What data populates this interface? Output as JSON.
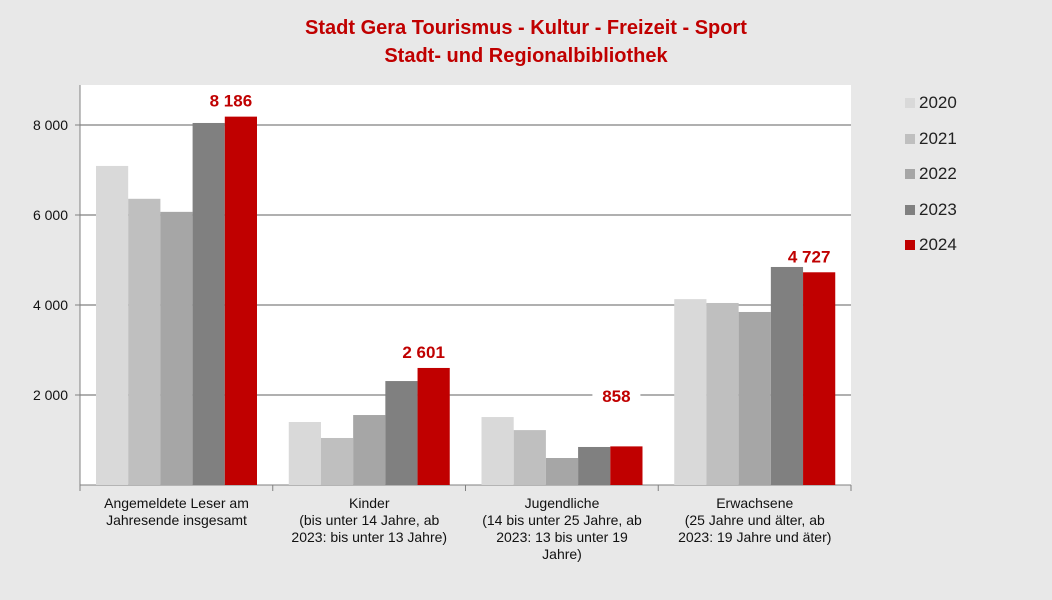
{
  "chart_data": {
    "type": "bar",
    "title": [
      "Stadt Gera Tourismus - Kultur - Freizeit - Sport",
      "Stadt- und Regionalbibliothek"
    ],
    "categories": [
      [
        "Angemeldete Leser am",
        "Jahresende insgesamt"
      ],
      [
        "Kinder",
        "(bis unter 14 Jahre, ab",
        "2023: bis unter 13 Jahre)"
      ],
      [
        "Jugendliche",
        "(14 bis unter 25 Jahre, ab",
        "2023: 13 bis unter 19",
        "Jahre)"
      ],
      [
        "Erwachsene",
        "(25 Jahre und älter, ab",
        "2023: 19 Jahre und äter)"
      ]
    ],
    "series": [
      {
        "name": "2020",
        "color": "#d9d9d9",
        "values": [
          7090,
          1400,
          1510,
          4130
        ]
      },
      {
        "name": "2021",
        "color": "#bfbfbf",
        "values": [
          6360,
          1045,
          1220,
          4045
        ]
      },
      {
        "name": "2022",
        "color": "#a6a6a6",
        "values": [
          6070,
          1555,
          600,
          3845
        ]
      },
      {
        "name": "2023",
        "color": "#808080",
        "values": [
          8045,
          2310,
          845,
          4845
        ]
      },
      {
        "name": "2024",
        "color": "#c00000",
        "values": [
          8186,
          2601,
          858,
          4727
        ]
      }
    ],
    "data_labels": {
      "series": "2024",
      "labels": [
        "8 186",
        "2 601",
        "858",
        "4 727"
      ]
    },
    "yticks": [
      {
        "v": 2000,
        "label": "2 000"
      },
      {
        "v": 4000,
        "label": "4 000"
      },
      {
        "v": 6000,
        "label": "6 000"
      },
      {
        "v": 8000,
        "label": "8 000"
      }
    ],
    "ylim": [
      0,
      8900
    ],
    "grid": true,
    "legend": "right"
  }
}
